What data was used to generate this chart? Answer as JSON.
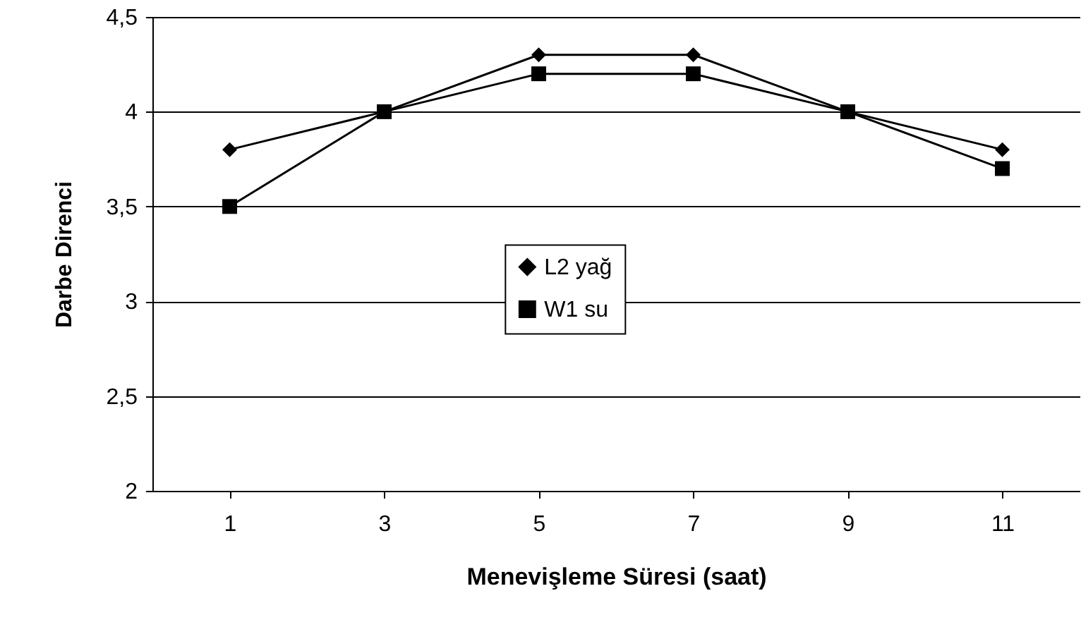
{
  "chart_data": {
    "type": "line",
    "xlabel": "Menevişleme Süresi (saat)",
    "ylabel": "Darbe Direnci",
    "categories": [
      "1",
      "3",
      "5",
      "7",
      "9",
      "11"
    ],
    "series": [
      {
        "name": "L2 yağ",
        "color": "#000000",
        "marker": "diamond",
        "values": [
          3.8,
          4.0,
          4.3,
          4.3,
          4.0,
          3.8
        ]
      },
      {
        "name": "W1 su",
        "color": "#000000",
        "marker": "square",
        "values": [
          3.5,
          4.0,
          4.2,
          4.2,
          4.0,
          3.7
        ]
      }
    ],
    "ylim": [
      2,
      4.5
    ],
    "yticks": [
      2,
      {
        "value": 2.5,
        "label": "2,5"
      },
      3,
      {
        "value": 3.5,
        "label": "3,5"
      },
      4,
      {
        "value": 4.5,
        "label": "4,5"
      }
    ],
    "grid": "y",
    "legend": "center"
  }
}
